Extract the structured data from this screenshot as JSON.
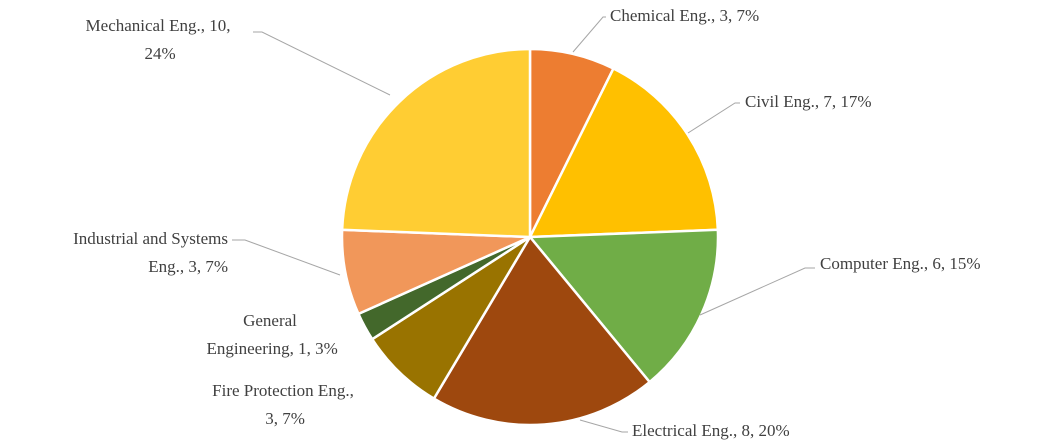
{
  "chart_data": {
    "type": "pie",
    "categories": [
      "Chemical Eng.",
      "Civil Eng.",
      "Computer Eng.",
      "Electrical Eng.",
      "Fire Protection Eng.",
      "General Engineering",
      "Industrial and Systems Eng.",
      "Mechanical Eng."
    ],
    "values": [
      3,
      7,
      6,
      8,
      3,
      1,
      3,
      10
    ],
    "value_labels": [
      "Chemical Eng., 3, 7%",
      "Civil Eng., 7, 17%",
      "Computer Eng., 6, 15%",
      "Electrical Eng., 8, 20%",
      "Fire Protection Eng., 3, 7%",
      "General Engineering, 1, 3%",
      "Industrial and Systems Eng., 3, 7%",
      "Mechanical Eng., 10, 24%"
    ],
    "colors": [
      "#ED7D31",
      "#FFC000",
      "#70AD47",
      "#9E480E",
      "#997300",
      "#43682B",
      "#F1975A",
      "#FFCD33"
    ]
  }
}
